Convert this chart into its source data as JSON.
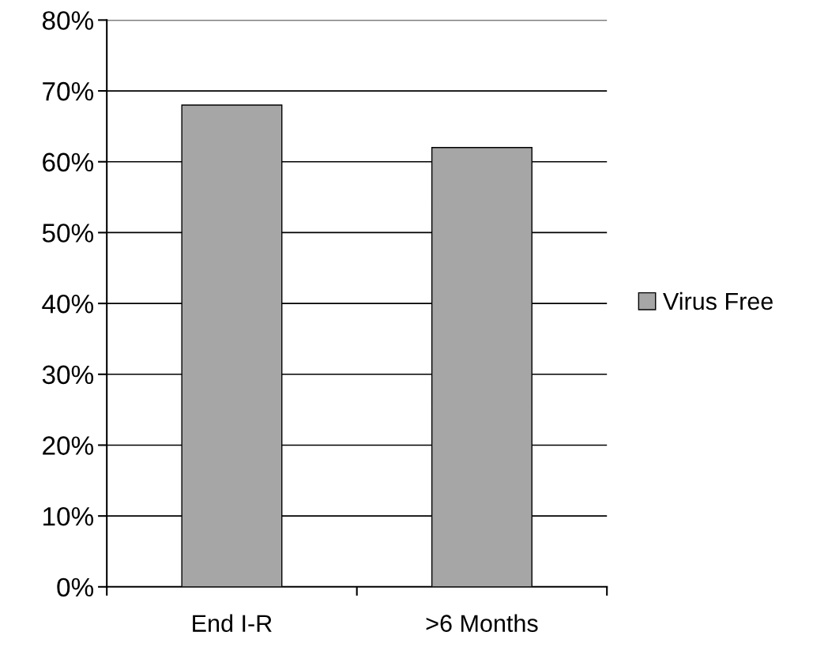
{
  "chart_data": {
    "type": "bar",
    "categories": [
      "End I-R",
      ">6 Months"
    ],
    "series": [
      {
        "name": "Virus Free",
        "color": "#a6a6a6",
        "values": [
          68,
          62
        ]
      }
    ],
    "ylim": [
      0,
      80
    ],
    "yticks": [
      {
        "value": 0,
        "label": "0%"
      },
      {
        "value": 10,
        "label": "10%"
      },
      {
        "value": 20,
        "label": "20%"
      },
      {
        "value": 30,
        "label": "30%"
      },
      {
        "value": 40,
        "label": "40%"
      },
      {
        "value": 50,
        "label": "50%"
      },
      {
        "value": 60,
        "label": "60%"
      },
      {
        "value": 70,
        "label": "70%"
      },
      {
        "value": 80,
        "label": "80%"
      }
    ],
    "grid": "y",
    "legend": "right"
  }
}
